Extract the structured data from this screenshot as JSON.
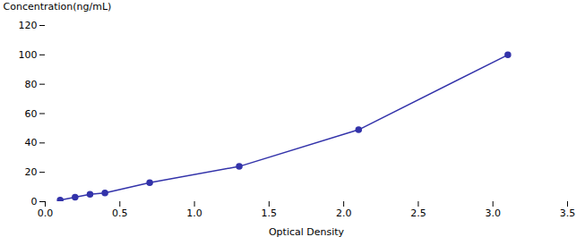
{
  "chart_data": {
    "type": "line",
    "xlabel": "Optical Density",
    "ylabel": "Concentration(ng/mL)",
    "x": [
      0.1,
      0.2,
      0.3,
      0.4,
      0.7,
      1.3,
      2.1,
      3.1
    ],
    "values": [
      1.0,
      3.0,
      5.0,
      6.0,
      13.0,
      24.0,
      49.0,
      100.0
    ],
    "color": "#3333aa",
    "marker": "circle",
    "xlim": [
      0,
      3.5
    ],
    "ylim": [
      0,
      120
    ],
    "xticks": [
      {
        "value": 0,
        "label": "0.0"
      },
      0.5,
      {
        "value": 1.0,
        "label": "1.0"
      },
      1.5,
      {
        "value": 2.0,
        "label": "2.0"
      },
      2.5,
      {
        "value": 3.0,
        "label": "3.0"
      },
      3.5
    ],
    "yticks": [
      0,
      20,
      40,
      60,
      80,
      100,
      120
    ],
    "grid": false
  }
}
